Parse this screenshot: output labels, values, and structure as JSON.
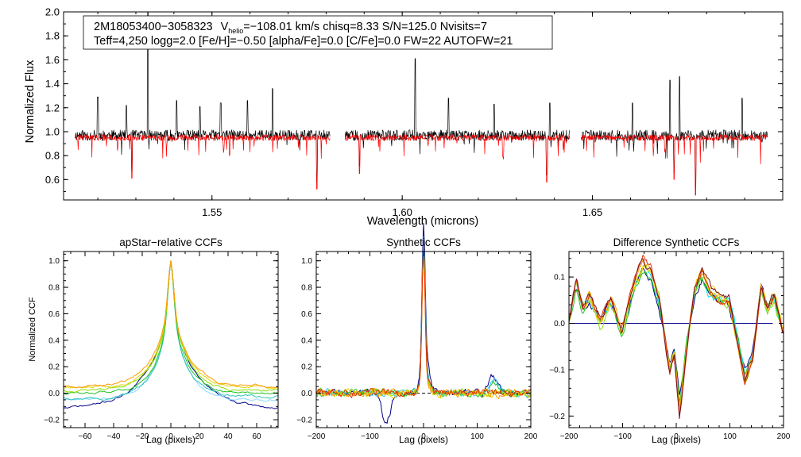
{
  "annotation": {
    "line1_star": "2M18053400−3058323",
    "line1_v": "V",
    "line1_vsub": "helio",
    "line1_rest": "=−108.01 km/s  chisq=8.33  S/N=125.0  Nvisits=7",
    "line2": "Teff=4,250 logg=2.0 [Fe/H]=−0.50 [alpha/Fe]=0.0 [C/Fe]=0.0 FW=22 AUTOFW=21"
  },
  "chart_data": [
    {
      "type": "line",
      "title": "",
      "xlabel": "Wavelength (microns)",
      "ylabel": "Normalized Flux",
      "xlim": [
        1.511,
        1.7
      ],
      "ylim": [
        0.43,
        2.0
      ],
      "xticks": [
        "1.55",
        "1.60",
        "1.65"
      ],
      "yticks": [
        "0.6",
        "0.8",
        "1.0",
        "1.2",
        "1.4",
        "1.6",
        "1.8",
        "2.0"
      ],
      "detector_segments": [
        [
          1.514,
          1.581
        ],
        [
          1.585,
          1.644
        ],
        [
          1.647,
          1.696
        ]
      ],
      "series": [
        {
          "name": "",
          "color": "#000000",
          "baseline": 0.97,
          "emission_peaks": [
            [
              1.5332,
              2.0
            ],
            [
              1.52,
              1.29
            ],
            [
              1.5275,
              1.22
            ],
            [
              1.5407,
              1.26
            ],
            [
              1.5468,
              1.21
            ],
            [
              1.5523,
              1.24
            ],
            [
              1.5593,
              1.26
            ],
            [
              1.5659,
              1.36
            ],
            [
              1.6034,
              1.61
            ],
            [
              1.6122,
              1.28
            ],
            [
              1.6242,
              1.23
            ],
            [
              1.6388,
              1.24
            ],
            [
              1.6605,
              1.24
            ],
            [
              1.6704,
              1.43
            ],
            [
              1.6729,
              1.46
            ],
            [
              1.6893,
              1.28
            ]
          ]
        },
        {
          "name": "",
          "color": "#ff0000",
          "baseline": 0.95,
          "absorption_minima": [
            [
              1.5289,
              0.61
            ],
            [
              1.5776,
              0.52
            ],
            [
              1.5888,
              0.65
            ],
            [
              1.638,
              0.58
            ],
            [
              1.6714,
              0.6
            ],
            [
              1.6771,
              0.47
            ]
          ]
        }
      ]
    },
    {
      "type": "line",
      "title": "apStar−relative CCFs",
      "xlabel": "Lag (pixels)",
      "ylabel": "Normalized CCF",
      "xlim": [
        -75,
        75
      ],
      "ylim": [
        -0.26,
        1.07
      ],
      "xticks": [
        "−60",
        "−40",
        "−20",
        "0",
        "20",
        "40",
        "60"
      ],
      "yticks": [
        "−0.2",
        "0.0",
        "0.2",
        "0.4",
        "0.6",
        "0.8",
        "1.0"
      ],
      "peak_lag": 0,
      "series": [
        {
          "color": "#00008b",
          "half_width": 17,
          "edge_value": -0.12
        },
        {
          "color": "#8bd8ff",
          "half_width": 11,
          "edge_value": -0.05
        },
        {
          "color": "#2ec4b6",
          "half_width": 10,
          "edge_value": -0.03
        },
        {
          "color": "#21c421",
          "half_width": 10,
          "edge_value": 0.0
        },
        {
          "color": "#8ae00a",
          "half_width": 11,
          "edge_value": 0.02
        },
        {
          "color": "#e0d400",
          "half_width": 11,
          "edge_value": 0.04
        },
        {
          "color": "#ff9900",
          "half_width": 12,
          "edge_value": 0.05
        }
      ]
    },
    {
      "type": "line",
      "title": "Synthetic CCFs",
      "xlabel": "Lag (pixels)",
      "ylabel": "",
      "xlim": [
        -200,
        200
      ],
      "ylim": [
        -0.26,
        1.07
      ],
      "xticks": [
        "−200",
        "−100",
        "0",
        "100",
        "200"
      ],
      "yticks": [
        "−0.2",
        "0.0",
        "0.2",
        "0.4",
        "0.6",
        "0.8",
        "1.0"
      ],
      "reference_line": {
        "y": 0.0,
        "style": "dashed"
      },
      "peak_lag": 0,
      "series": [
        {
          "color": "#00008b",
          "shoulder": 0.31,
          "bump": [
            [
              -70,
              -0.2
            ],
            [
              130,
              0.14
            ]
          ]
        },
        {
          "color": "#2ec4ff",
          "shoulder": 0.2,
          "bump": [
            [
              130,
              0.1
            ]
          ]
        },
        {
          "color": "#21c421",
          "shoulder": 0.15,
          "bump": [
            [
              130,
              0.07
            ]
          ]
        },
        {
          "color": "#8ae00a",
          "shoulder": 0.12,
          "bump": []
        },
        {
          "color": "#e0d400",
          "shoulder": 0.1,
          "bump": []
        },
        {
          "color": "#ff9900",
          "shoulder": 0.1,
          "bump": []
        },
        {
          "color": "#e03000",
          "shoulder": 0.12,
          "bump": []
        }
      ]
    },
    {
      "type": "line",
      "title": "Difference Synthetic CCFs",
      "xlabel": "Lag (pixels)",
      "ylabel": "",
      "xlim": [
        -200,
        200
      ],
      "ylim": [
        -0.225,
        0.155
      ],
      "xticks": [
        "−200",
        "−100",
        "0",
        "100",
        "200"
      ],
      "yticks": [
        "−0.2",
        "−0.1",
        "0.0",
        "0.1"
      ],
      "reference_line": {
        "y": 0.0,
        "color": "#00008b",
        "xrange": [
          -200,
          180
        ]
      },
      "anchor_points": [
        [
          -200,
          -0.01
        ],
        [
          -185,
          0.09
        ],
        [
          -172,
          0.03
        ],
        [
          -160,
          0.06
        ],
        [
          -140,
          0.0
        ],
        [
          -120,
          0.05
        ],
        [
          -100,
          -0.02
        ],
        [
          -80,
          0.07
        ],
        [
          -60,
          0.13
        ],
        [
          -45,
          0.11
        ],
        [
          -30,
          0.05
        ],
        [
          -20,
          -0.03
        ],
        [
          -10,
          -0.1
        ],
        [
          -2,
          -0.06
        ],
        [
          8,
          -0.19
        ],
        [
          20,
          -0.06
        ],
        [
          35,
          0.07
        ],
        [
          50,
          0.11
        ],
        [
          65,
          0.07
        ],
        [
          85,
          0.05
        ],
        [
          100,
          0.05
        ],
        [
          115,
          -0.03
        ],
        [
          130,
          -0.12
        ],
        [
          145,
          -0.07
        ],
        [
          160,
          0.08
        ],
        [
          172,
          0.03
        ],
        [
          185,
          0.06
        ],
        [
          200,
          -0.02
        ]
      ],
      "series": [
        {
          "color": "#00008b"
        },
        {
          "color": "#00e0ff"
        },
        {
          "color": "#21c421"
        },
        {
          "color": "#8ae00a"
        },
        {
          "color": "#ffd000"
        },
        {
          "color": "#ff9900"
        },
        {
          "color": "#e03000"
        },
        {
          "color": "#7a1020"
        }
      ]
    }
  ]
}
